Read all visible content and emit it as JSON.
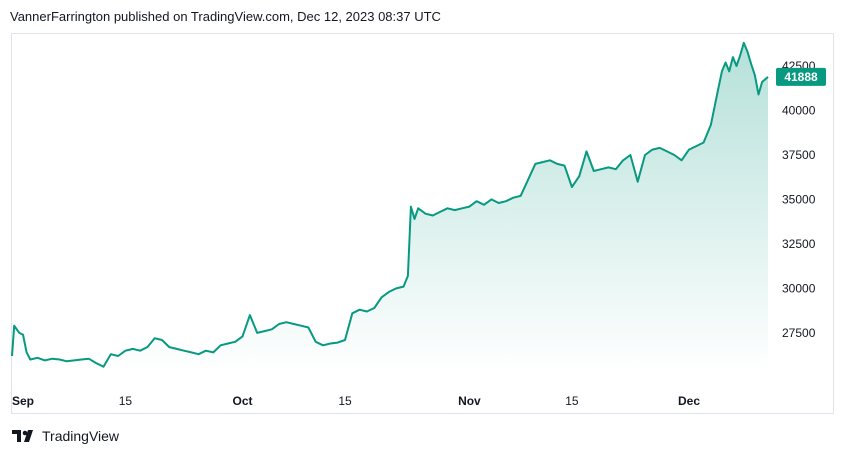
{
  "header": {
    "published_text": "VannerFarrington published on TradingView.com, Dec 12, 2023 08:37 UTC"
  },
  "footer": {
    "brand": "TradingView",
    "logo_icon": "tradingview-logo-icon"
  },
  "colors": {
    "line": "#089981",
    "fill_top": "#089981",
    "label_bg": "#089981"
  },
  "chart_data": {
    "type": "area",
    "last_price_label": "41888",
    "x_ticks": [
      {
        "label": "Sep",
        "day": 0,
        "bold": true
      },
      {
        "label": "15",
        "day": 14,
        "bold": false
      },
      {
        "label": "Oct",
        "day": 30,
        "bold": true
      },
      {
        "label": "15",
        "day": 44,
        "bold": false
      },
      {
        "label": "Nov",
        "day": 61,
        "bold": true
      },
      {
        "label": "15",
        "day": 75,
        "bold": false
      },
      {
        "label": "Dec",
        "day": 91,
        "bold": true
      }
    ],
    "y_ticks": [
      27500,
      30000,
      32500,
      35000,
      37500,
      40000,
      42500
    ],
    "ylim": [
      25300,
      44300
    ],
    "xlim": [
      -1.5,
      101.8
    ],
    "points": [
      [
        -1.5,
        26200
      ],
      [
        -1.2,
        27900
      ],
      [
        -0.5,
        27500
      ],
      [
        0,
        27400
      ],
      [
        0.5,
        26400
      ],
      [
        1,
        26000
      ],
      [
        2,
        26100
      ],
      [
        3,
        25950
      ],
      [
        4,
        26050
      ],
      [
        5,
        26000
      ],
      [
        6,
        25900
      ],
      [
        7,
        25950
      ],
      [
        8,
        26000
      ],
      [
        9,
        26050
      ],
      [
        10,
        25800
      ],
      [
        11,
        25600
      ],
      [
        12,
        26300
      ],
      [
        13,
        26200
      ],
      [
        14,
        26500
      ],
      [
        15,
        26600
      ],
      [
        16,
        26500
      ],
      [
        17,
        26700
      ],
      [
        18,
        27200
      ],
      [
        19,
        27100
      ],
      [
        20,
        26700
      ],
      [
        21,
        26600
      ],
      [
        22,
        26500
      ],
      [
        23,
        26400
      ],
      [
        24,
        26300
      ],
      [
        25,
        26500
      ],
      [
        26,
        26400
      ],
      [
        27,
        26800
      ],
      [
        28,
        26900
      ],
      [
        29,
        27000
      ],
      [
        30,
        27300
      ],
      [
        31,
        28500
      ],
      [
        32,
        27500
      ],
      [
        33,
        27600
      ],
      [
        34,
        27700
      ],
      [
        35,
        28000
      ],
      [
        36,
        28100
      ],
      [
        37,
        28000
      ],
      [
        38,
        27900
      ],
      [
        39,
        27800
      ],
      [
        40,
        27000
      ],
      [
        41,
        26800
      ],
      [
        42,
        26900
      ],
      [
        43,
        26950
      ],
      [
        44,
        27100
      ],
      [
        45,
        28600
      ],
      [
        46,
        28800
      ],
      [
        47,
        28700
      ],
      [
        48,
        28900
      ],
      [
        49,
        29500
      ],
      [
        50,
        29800
      ],
      [
        51,
        30000
      ],
      [
        52,
        30100
      ],
      [
        52.6,
        30700
      ],
      [
        53,
        34600
      ],
      [
        53.5,
        33900
      ],
      [
        54,
        34500
      ],
      [
        55,
        34200
      ],
      [
        56,
        34100
      ],
      [
        57,
        34300
      ],
      [
        58,
        34500
      ],
      [
        59,
        34400
      ],
      [
        60,
        34500
      ],
      [
        61,
        34600
      ],
      [
        62,
        34900
      ],
      [
        63,
        34700
      ],
      [
        64,
        35000
      ],
      [
        65,
        34800
      ],
      [
        66,
        34900
      ],
      [
        67,
        35100
      ],
      [
        68,
        35200
      ],
      [
        69,
        36100
      ],
      [
        70,
        37000
      ],
      [
        71,
        37100
      ],
      [
        72,
        37200
      ],
      [
        73,
        37000
      ],
      [
        74,
        36900
      ],
      [
        75,
        35700
      ],
      [
        76,
        36300
      ],
      [
        77,
        37700
      ],
      [
        78,
        36600
      ],
      [
        79,
        36700
      ],
      [
        80,
        36800
      ],
      [
        81,
        36700
      ],
      [
        82,
        37200
      ],
      [
        83,
        37500
      ],
      [
        84,
        36000
      ],
      [
        85,
        37500
      ],
      [
        86,
        37800
      ],
      [
        87,
        37900
      ],
      [
        88,
        37700
      ],
      [
        89,
        37500
      ],
      [
        90,
        37200
      ],
      [
        91,
        37800
      ],
      [
        92,
        38000
      ],
      [
        93,
        38200
      ],
      [
        94,
        39200
      ],
      [
        95,
        41200
      ],
      [
        95.5,
        42200
      ],
      [
        96,
        42700
      ],
      [
        96.5,
        42200
      ],
      [
        97,
        43000
      ],
      [
        97.5,
        42500
      ],
      [
        98,
        43100
      ],
      [
        98.5,
        43800
      ],
      [
        99,
        43300
      ],
      [
        99.5,
        42600
      ],
      [
        100,
        42000
      ],
      [
        100.5,
        40900
      ],
      [
        101,
        41600
      ],
      [
        101.8,
        41888
      ]
    ]
  }
}
